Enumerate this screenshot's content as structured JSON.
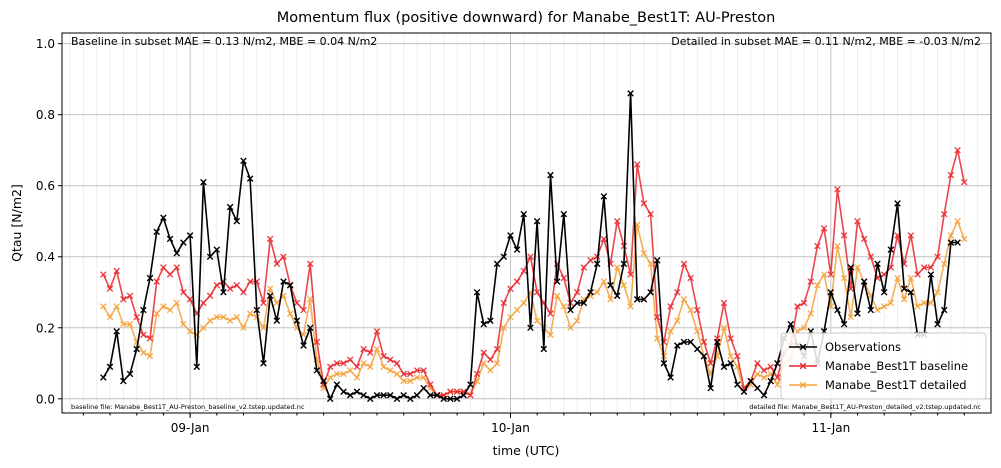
{
  "chart_data": {
    "type": "line",
    "title": "Momentum flux (positive downward) for Manabe_Best1T: AU-Preston",
    "xlabel": "time (UTC)",
    "ylabel": "Qtau [N/m2]",
    "ylim": [
      -0.04,
      1.03
    ],
    "xlim": [
      0.6,
      3.5
    ],
    "x_unit": "days (08-Jan 00:00 = 0)",
    "yticks": [
      0.0,
      0.2,
      0.4,
      0.6,
      0.8,
      1.0
    ],
    "yticklabels": [
      "0.0",
      "0.2",
      "0.4",
      "0.6",
      "0.8",
      "1.0"
    ],
    "xticks": [
      1,
      2,
      3
    ],
    "xticklabels": [
      "09-Jan",
      "10-Jan",
      "11-Jan"
    ],
    "grid": true,
    "legend_position": "lower right",
    "annotations": {
      "top_left": "Baseline in subset MAE = 0.13 N/m2, MBE = 0.04 N/m2",
      "top_right": "Detailed in subset MAE = 0.11 N/m2, MBE = -0.03 N/m2",
      "bottom_left": "baseline file: Manabe_Best1T_AU-Preston_baseline_v2.tstep.updated.nc",
      "bottom_right": "detailed file: Manabe_Best1T_AU-Preston_detailed_v2.tstep.updated.nc"
    },
    "series": [
      {
        "name": "Observations",
        "color": "#000000",
        "x0": 0.729,
        "dx": 0.0208333,
        "values": [
          0.06,
          0.09,
          0.19,
          0.05,
          0.07,
          0.14,
          0.25,
          0.34,
          0.47,
          0.51,
          0.45,
          0.41,
          0.44,
          0.46,
          0.09,
          0.61,
          0.4,
          0.42,
          0.3,
          0.54,
          0.5,
          0.67,
          0.62,
          0.25,
          0.1,
          0.29,
          0.22,
          0.33,
          0.32,
          0.22,
          0.15,
          0.2,
          0.08,
          0.05,
          0.0,
          0.04,
          0.02,
          0.01,
          0.02,
          0.01,
          0.0,
          0.01,
          0.01,
          0.01,
          0.0,
          0.01,
          0.0,
          0.01,
          0.03,
          0.01,
          0.01,
          0.0,
          0.0,
          0.0,
          0.01,
          0.04,
          0.3,
          0.21,
          0.22,
          0.38,
          0.4,
          0.46,
          0.42,
          0.52,
          0.2,
          0.5,
          0.14,
          0.63,
          0.33,
          0.52,
          0.25,
          0.27,
          0.27,
          0.3,
          0.38,
          0.57,
          0.32,
          0.29,
          0.38,
          0.86,
          0.28,
          0.28,
          0.3,
          0.39,
          0.1,
          0.06,
          0.15,
          0.16,
          0.16,
          0.14,
          0.12,
          0.03,
          0.16,
          0.09,
          0.1,
          0.04,
          0.02,
          0.05,
          0.03,
          0.01,
          0.05,
          0.1,
          0.17,
          0.21,
          0.15,
          0.12,
          0.19,
          0.1,
          0.19,
          0.3,
          0.25,
          0.21,
          0.37,
          0.24,
          0.33,
          0.25,
          0.38,
          0.3,
          0.42,
          0.55,
          0.31,
          0.3,
          0.18,
          0.18,
          0.35,
          0.21,
          0.25,
          0.44,
          0.44
        ]
      },
      {
        "name": "Manabe_Best1T baseline",
        "color": "#e8262b",
        "x0": 0.729,
        "dx": 0.0208333,
        "values": [
          0.35,
          0.31,
          0.36,
          0.28,
          0.29,
          0.23,
          0.18,
          0.17,
          0.33,
          0.37,
          0.35,
          0.37,
          0.3,
          0.28,
          0.24,
          0.27,
          0.29,
          0.32,
          0.33,
          0.31,
          0.32,
          0.3,
          0.33,
          0.33,
          0.27,
          0.45,
          0.38,
          0.4,
          0.32,
          0.27,
          0.25,
          0.38,
          0.16,
          0.04,
          0.09,
          0.1,
          0.1,
          0.11,
          0.09,
          0.14,
          0.13,
          0.19,
          0.12,
          0.11,
          0.1,
          0.07,
          0.07,
          0.08,
          0.08,
          0.04,
          0.01,
          0.01,
          0.02,
          0.02,
          0.02,
          0.01,
          0.07,
          0.13,
          0.11,
          0.14,
          0.27,
          0.31,
          0.33,
          0.36,
          0.4,
          0.3,
          0.27,
          0.24,
          0.38,
          0.34,
          0.27,
          0.3,
          0.37,
          0.39,
          0.4,
          0.45,
          0.38,
          0.5,
          0.43,
          0.35,
          0.66,
          0.55,
          0.52,
          0.23,
          0.16,
          0.26,
          0.3,
          0.38,
          0.34,
          0.25,
          0.16,
          0.1,
          0.17,
          0.27,
          0.17,
          0.12,
          0.03,
          0.05,
          0.1,
          0.08,
          0.09,
          0.06,
          0.13,
          0.15,
          0.26,
          0.27,
          0.33,
          0.43,
          0.48,
          0.35,
          0.59,
          0.46,
          0.31,
          0.5,
          0.45,
          0.4,
          0.34,
          0.35,
          0.37,
          0.46,
          0.38,
          0.46,
          0.35,
          0.37,
          0.37,
          0.4,
          0.52,
          0.63,
          0.7,
          0.61
        ]
      },
      {
        "name": "Manabe_Best1T detailed",
        "color": "#f5a13a",
        "x0": 0.729,
        "dx": 0.0208333,
        "values": [
          0.26,
          0.23,
          0.26,
          0.21,
          0.21,
          0.16,
          0.13,
          0.12,
          0.24,
          0.26,
          0.25,
          0.27,
          0.21,
          0.19,
          0.18,
          0.2,
          0.22,
          0.23,
          0.23,
          0.22,
          0.23,
          0.2,
          0.24,
          0.23,
          0.2,
          0.31,
          0.27,
          0.29,
          0.24,
          0.2,
          0.18,
          0.28,
          0.11,
          0.03,
          0.06,
          0.07,
          0.07,
          0.08,
          0.06,
          0.1,
          0.09,
          0.14,
          0.09,
          0.08,
          0.07,
          0.05,
          0.05,
          0.06,
          0.06,
          0.03,
          0.01,
          0.01,
          0.02,
          0.02,
          0.02,
          0.01,
          0.05,
          0.1,
          0.08,
          0.1,
          0.2,
          0.23,
          0.25,
          0.27,
          0.3,
          0.22,
          0.2,
          0.18,
          0.29,
          0.26,
          0.2,
          0.22,
          0.28,
          0.29,
          0.3,
          0.33,
          0.28,
          0.37,
          0.32,
          0.26,
          0.49,
          0.41,
          0.38,
          0.17,
          0.12,
          0.19,
          0.22,
          0.28,
          0.25,
          0.19,
          0.12,
          0.07,
          0.12,
          0.2,
          0.12,
          0.09,
          0.02,
          0.04,
          0.07,
          0.06,
          0.07,
          0.04,
          0.1,
          0.11,
          0.19,
          0.2,
          0.24,
          0.32,
          0.35,
          0.26,
          0.43,
          0.34,
          0.23,
          0.37,
          0.33,
          0.29,
          0.25,
          0.26,
          0.27,
          0.34,
          0.28,
          0.34,
          0.26,
          0.27,
          0.27,
          0.3,
          0.38,
          0.46,
          0.5,
          0.45
        ]
      }
    ]
  }
}
